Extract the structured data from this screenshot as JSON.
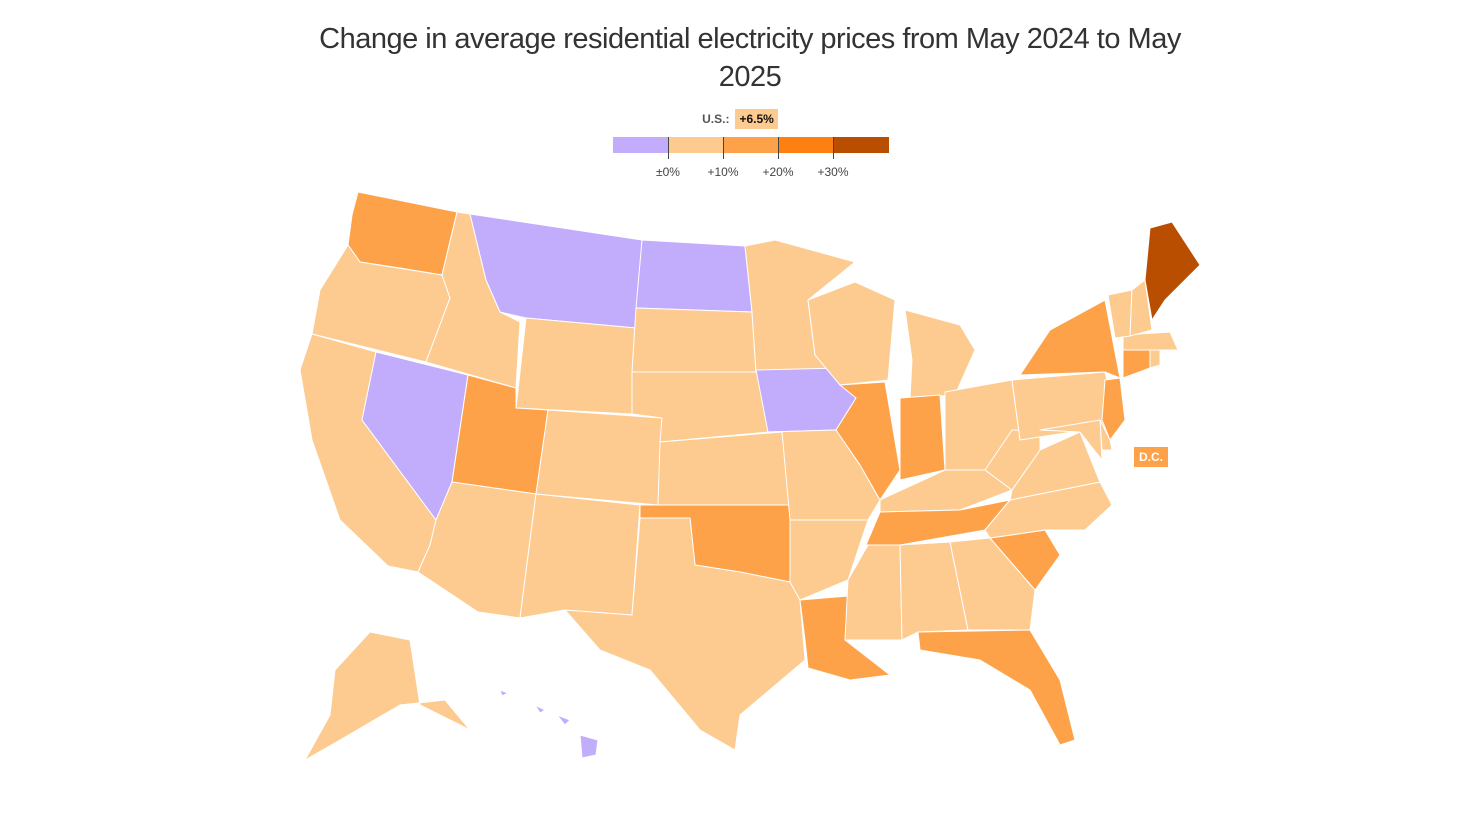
{
  "title": "Change in average residential electricity prices from May 2024 to May 2025",
  "us_average": {
    "label": "U.S.:",
    "value": "+6.5%"
  },
  "legend": {
    "bins": [
      {
        "range": "< 0%",
        "color": "#c2acfc"
      },
      {
        "range": "0% to 10%",
        "color": "#fdca8f"
      },
      {
        "range": "10% to 20%",
        "color": "#fea24a"
      },
      {
        "range": "20% to 30%",
        "color": "#fd8011"
      },
      {
        "range": "> 30%",
        "color": "#b94d00"
      }
    ],
    "ticks": [
      "±0%",
      "+10%",
      "+20%",
      "+30%"
    ]
  },
  "dc_label": "D.C.",
  "chart_data": {
    "type": "choropleth",
    "title": "Change in average residential electricity prices from May 2024 to May 2025",
    "us_average": 6.5,
    "bins": [
      "<0%",
      "0-10%",
      "10-20%",
      "20-30%",
      ">30%"
    ],
    "states": {
      "WA": "10-20%",
      "OR": "0-10%",
      "CA": "0-10%",
      "NV": "<0%",
      "ID": "0-10%",
      "MT": "<0%",
      "WY": "0-10%",
      "UT": "10-20%",
      "AZ": "0-10%",
      "CO": "0-10%",
      "NM": "0-10%",
      "ND": "<0%",
      "SD": "0-10%",
      "NE": "0-10%",
      "KS": "0-10%",
      "OK": "10-20%",
      "TX": "0-10%",
      "MN": "0-10%",
      "IA": "<0%",
      "MO": "0-10%",
      "AR": "0-10%",
      "LA": "10-20%",
      "WI": "0-10%",
      "IL": "10-20%",
      "MI": "0-10%",
      "IN": "10-20%",
      "OH": "0-10%",
      "KY": "0-10%",
      "TN": "10-20%",
      "MS": "0-10%",
      "AL": "0-10%",
      "GA": "0-10%",
      "FL": "10-20%",
      "SC": "10-20%",
      "NC": "0-10%",
      "VA": "0-10%",
      "WV": "0-10%",
      "PA": "0-10%",
      "NY": "10-20%",
      "NJ": "10-20%",
      "DE": "0-10%",
      "MD": "0-10%",
      "CT": "10-20%",
      "RI": "0-10%",
      "MA": "0-10%",
      "VT": "0-10%",
      "NH": "0-10%",
      "ME": ">30%",
      "AK": "0-10%",
      "HI": "<0%",
      "DC": "10-20%"
    }
  }
}
